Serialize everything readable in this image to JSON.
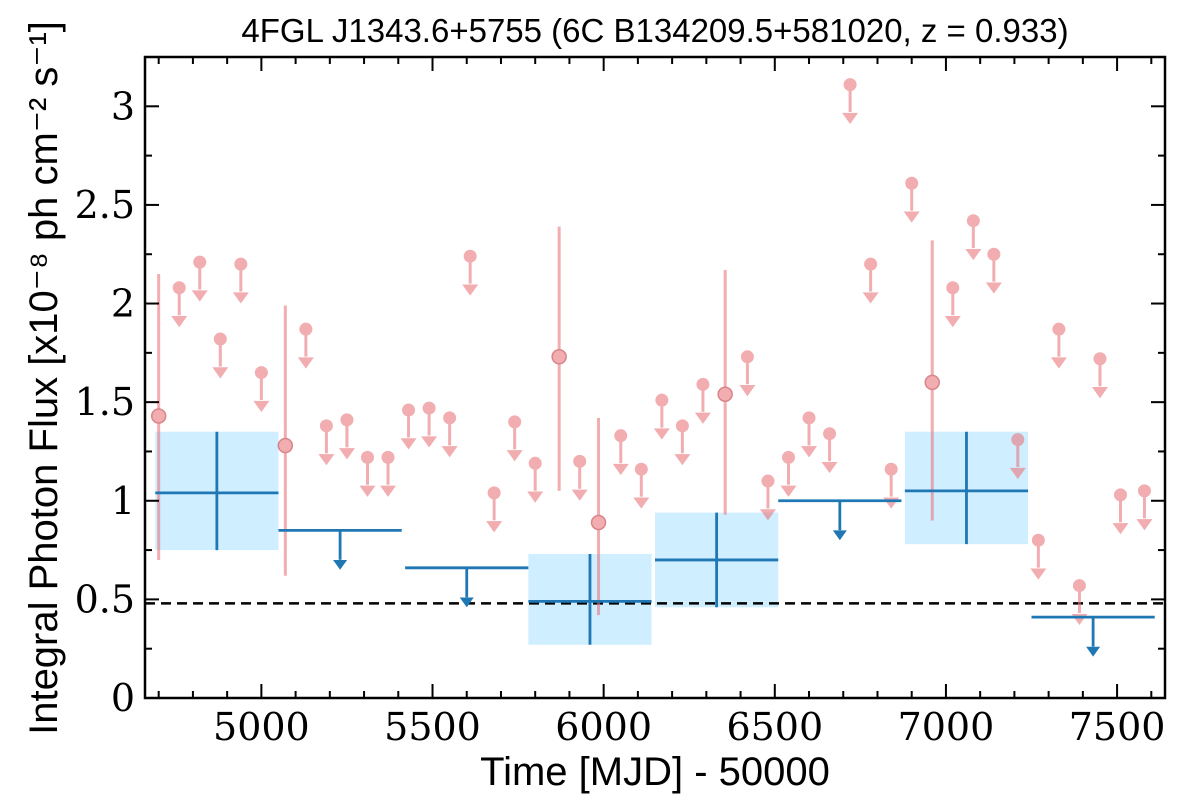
{
  "chart_data": {
    "type": "scatter",
    "title": "4FGL J1343.6+5755 (6C B134209.5+581020, z = 0.933)",
    "xlabel": "Time [MJD] - 50000",
    "ylabel": "Integral Photon Flux [x10⁻⁸ ph cm⁻² s⁻¹]",
    "xlim": [
      4660,
      7640
    ],
    "ylim": [
      0,
      3.25
    ],
    "xticks": [
      5000,
      5500,
      6000,
      6500,
      7000,
      7500
    ],
    "xtick_labels": [
      "5000",
      "5500",
      "6000",
      "6500",
      "7000",
      "7500"
    ],
    "yticks": [
      0,
      0.5,
      1,
      1.5,
      2,
      2.5,
      3
    ],
    "ytick_labels": [
      "0",
      "0.5",
      "1",
      "1.5",
      "2",
      "2.5",
      "3"
    ],
    "grid": false,
    "reference_line": {
      "y": 0.48,
      "style": "dashed",
      "color": "#000000"
    },
    "colors": {
      "short_bins": "#e8777c",
      "long_bins": "#1f77b4",
      "long_band": "#cfeeff"
    },
    "series": [
      {
        "kind": "short-bin-detections",
        "points": [
          {
            "x": 4700,
            "y": 1.43,
            "ylo": 0.7,
            "yhi": 2.15
          },
          {
            "x": 5070,
            "y": 1.28,
            "ylo": 0.62,
            "yhi": 1.99
          },
          {
            "x": 5870,
            "y": 1.73,
            "ylo": 1.05,
            "yhi": 2.39
          },
          {
            "x": 5985,
            "y": 0.89,
            "ylo": 0.42,
            "yhi": 1.42
          },
          {
            "x": 6355,
            "y": 1.54,
            "ylo": 0.93,
            "yhi": 2.17
          },
          {
            "x": 6960,
            "y": 1.6,
            "ylo": 0.9,
            "yhi": 2.32
          }
        ]
      },
      {
        "kind": "short-bin-upper-limits",
        "points": [
          {
            "x": 4760,
            "y": 2.08
          },
          {
            "x": 4820,
            "y": 2.21
          },
          {
            "x": 4880,
            "y": 1.82
          },
          {
            "x": 4940,
            "y": 2.2
          },
          {
            "x": 5000,
            "y": 1.65
          },
          {
            "x": 5130,
            "y": 1.87
          },
          {
            "x": 5190,
            "y": 1.38
          },
          {
            "x": 5250,
            "y": 1.41
          },
          {
            "x": 5310,
            "y": 1.22
          },
          {
            "x": 5370,
            "y": 1.22
          },
          {
            "x": 5430,
            "y": 1.46
          },
          {
            "x": 5490,
            "y": 1.47
          },
          {
            "x": 5550,
            "y": 1.42
          },
          {
            "x": 5610,
            "y": 2.24
          },
          {
            "x": 5680,
            "y": 1.04
          },
          {
            "x": 5740,
            "y": 1.4
          },
          {
            "x": 5800,
            "y": 1.19
          },
          {
            "x": 5930,
            "y": 1.2
          },
          {
            "x": 6050,
            "y": 1.33
          },
          {
            "x": 6110,
            "y": 1.16
          },
          {
            "x": 6170,
            "y": 1.51
          },
          {
            "x": 6230,
            "y": 1.38
          },
          {
            "x": 6290,
            "y": 1.59
          },
          {
            "x": 6420,
            "y": 1.73
          },
          {
            "x": 6480,
            "y": 1.1
          },
          {
            "x": 6540,
            "y": 1.22
          },
          {
            "x": 6600,
            "y": 1.42
          },
          {
            "x": 6660,
            "y": 1.34
          },
          {
            "x": 6720,
            "y": 3.11
          },
          {
            "x": 6780,
            "y": 2.2
          },
          {
            "x": 6840,
            "y": 1.16
          },
          {
            "x": 6900,
            "y": 2.61
          },
          {
            "x": 7020,
            "y": 2.08
          },
          {
            "x": 7080,
            "y": 2.42
          },
          {
            "x": 7140,
            "y": 2.25
          },
          {
            "x": 7210,
            "y": 1.31
          },
          {
            "x": 7270,
            "y": 0.8
          },
          {
            "x": 7330,
            "y": 1.87
          },
          {
            "x": 7390,
            "y": 0.57
          },
          {
            "x": 7450,
            "y": 1.72
          },
          {
            "x": 7510,
            "y": 1.03
          },
          {
            "x": 7580,
            "y": 1.05
          }
        ]
      },
      {
        "kind": "long-bin-detections",
        "points": [
          {
            "x": 4870,
            "x0": 4690,
            "x1": 5050,
            "y": 1.04,
            "ylo": 0.75,
            "yhi": 1.35
          },
          {
            "x": 5960,
            "x0": 5780,
            "x1": 6140,
            "y": 0.49,
            "ylo": 0.27,
            "yhi": 0.73
          },
          {
            "x": 6330,
            "x0": 6150,
            "x1": 6510,
            "y": 0.7,
            "ylo": 0.46,
            "yhi": 0.94
          },
          {
            "x": 7060,
            "x0": 6880,
            "x1": 7240,
            "y": 1.05,
            "ylo": 0.78,
            "yhi": 1.35
          }
        ]
      },
      {
        "kind": "long-bin-upper-limits",
        "points": [
          {
            "x": 5230,
            "x0": 5050,
            "x1": 5410,
            "y": 0.85
          },
          {
            "x": 5600,
            "x0": 5420,
            "x1": 5780,
            "y": 0.66
          },
          {
            "x": 6690,
            "x0": 6510,
            "x1": 6870,
            "y": 1.0
          },
          {
            "x": 7430,
            "x0": 7250,
            "x1": 7610,
            "y": 0.41
          }
        ]
      }
    ]
  }
}
